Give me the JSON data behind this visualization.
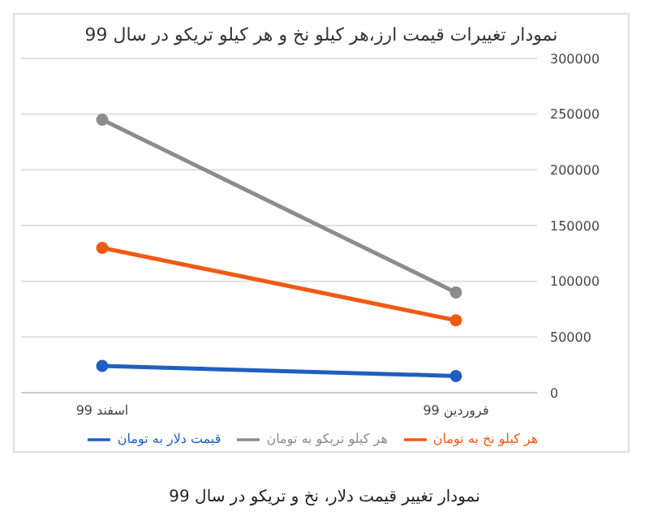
{
  "chart_data": {
    "type": "line",
    "title": "نمودار تغییرات قیمت ارز،هر کیلو نخ و هر کیلو تریکو در سال 99",
    "categories": [
      "اسفند 99",
      "فروردین 99"
    ],
    "series": [
      {
        "name": "قیمت دلار به تومان",
        "color": "#1f5fbf",
        "values": [
          24000,
          15000
        ]
      },
      {
        "name": "هر کیلو نخ به تومان",
        "color": "#f05a14",
        "values": [
          130000,
          65000
        ]
      },
      {
        "name": "هر کیلو تریکو به تومان",
        "color": "#8c8c8c",
        "values": [
          245000,
          90000
        ]
      }
    ],
    "ylim": [
      0,
      300000
    ],
    "yticks": [
      0,
      50000,
      100000,
      150000,
      200000,
      250000,
      300000
    ],
    "grid": "y",
    "legend": "bottom",
    "marker": "circle",
    "line_style": "solid",
    "annotations": [
      "نمودار تغییر قیمت دلار، نخ و تریکو در سال 99"
    ]
  }
}
